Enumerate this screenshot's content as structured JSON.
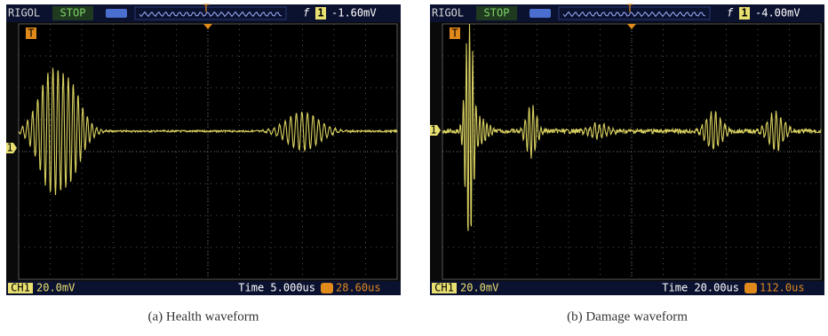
{
  "panels": [
    {
      "brand": "RIGOL",
      "status": "STOP",
      "trigger_slope": "f",
      "channel_marker": "1",
      "trigger_marker": "T",
      "trigger_level": "-1.60mV",
      "channel": "CH1",
      "volts_per_div": "20.0mV",
      "timebase": "Time 5.000us",
      "trigger_position": "28.60us",
      "caption": "(a)  Health waveform"
    },
    {
      "brand": "RIGOL",
      "status": "STOP",
      "trigger_slope": "f",
      "channel_marker": "1",
      "trigger_marker": "T",
      "trigger_level": "-4.00mV",
      "channel": "CH1",
      "volts_per_div": "20.0mV",
      "timebase": "Time 20.00us",
      "trigger_position": "112.0us",
      "caption": "(b)  Damage waveform"
    }
  ]
}
